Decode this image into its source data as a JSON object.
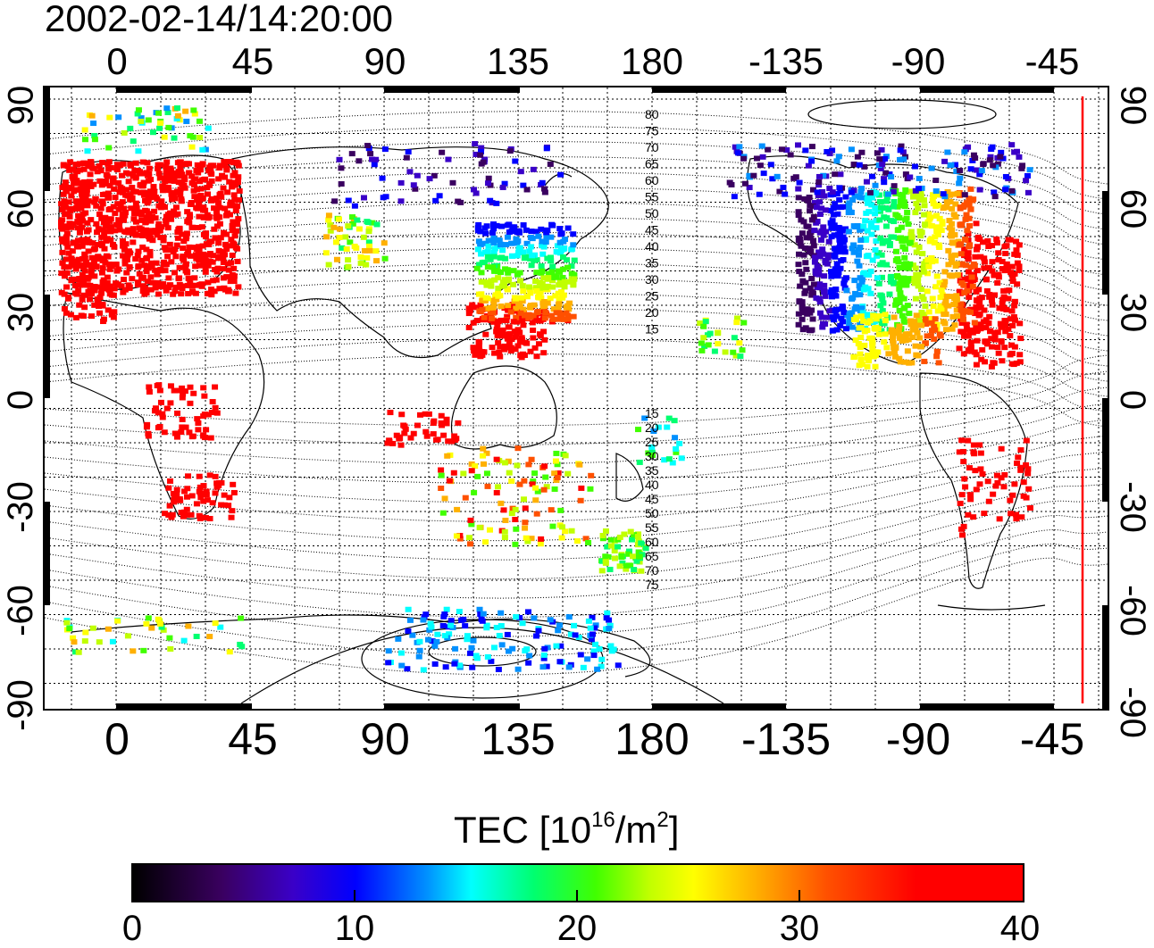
{
  "timestamp": "2002-02-14/14:20:00",
  "top_lon_labels": [
    "0",
    "45",
    "90",
    "135",
    "180",
    "-135",
    "-90",
    "-45"
  ],
  "bottom_lon_labels": [
    "0",
    "45",
    "90",
    "135",
    "180",
    "-135",
    "-90",
    "-45"
  ],
  "left_lat_labels": [
    "90",
    "60",
    "30",
    "0",
    "-30",
    "-60",
    "-90"
  ],
  "right_lat_labels": [
    "90",
    "60",
    "30",
    "0",
    "-30",
    "-60",
    "-90"
  ],
  "contour_labels_north": [
    "80",
    "75",
    "70",
    "65",
    "60",
    "55",
    "50",
    "45",
    "40",
    "35",
    "30",
    "25",
    "20",
    "15"
  ],
  "contour_labels_south": [
    "15",
    "20",
    "25",
    "30",
    "35",
    "40",
    "45",
    "50",
    "55",
    "60",
    "65",
    "70",
    "75"
  ],
  "colorbar": {
    "title_prefix": "TEC  [10",
    "title_exp": "16",
    "title_mid": "/m",
    "title_exp2": "2",
    "title_suffix": "]",
    "ticks": [
      "0",
      "10",
      "20",
      "30",
      "40"
    ],
    "range": [
      0,
      40
    ]
  },
  "colors": {
    "high_tec": "#ff0000",
    "terminator_line": "#ff0000",
    "grid": "#000000"
  }
}
